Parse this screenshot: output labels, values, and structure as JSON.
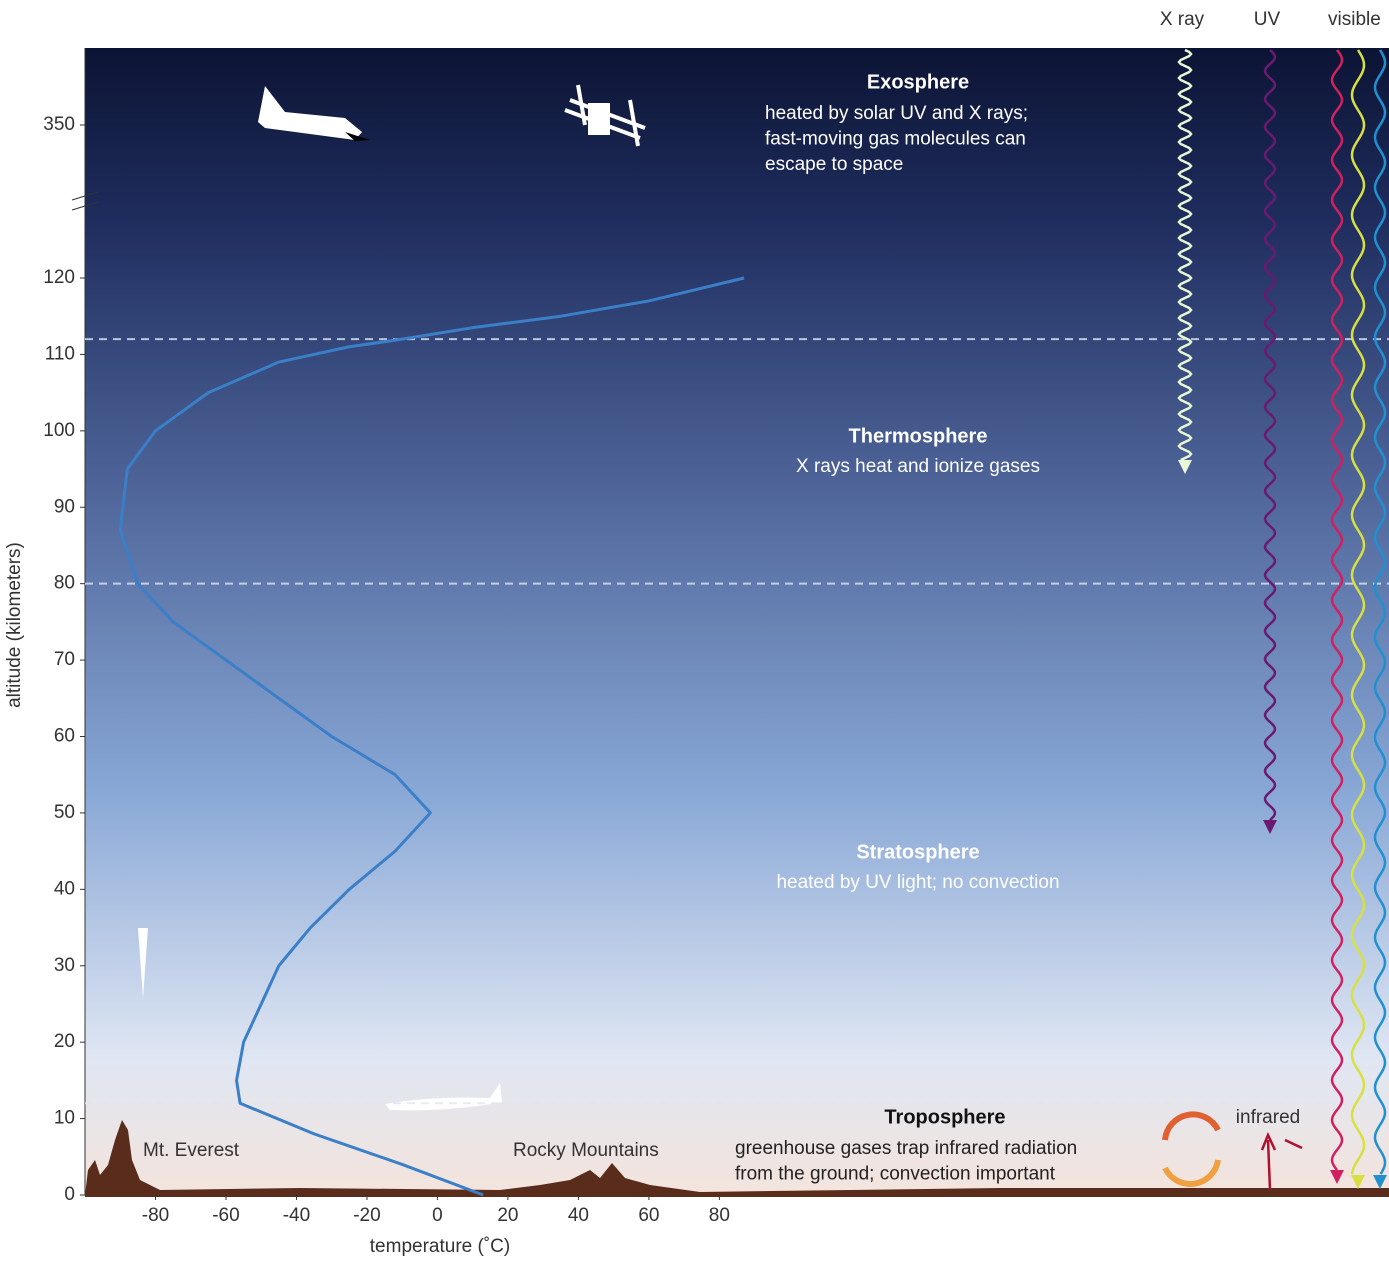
{
  "chart_data": {
    "type": "line",
    "x_label": "temperature (˚C)",
    "y_label": "altitude (kilometers)",
    "x": [
      13,
      -10,
      -35,
      -56,
      -57,
      -55,
      -50,
      -45,
      -36,
      -25,
      -12,
      -2,
      -12,
      -30,
      -45,
      -60,
      -75,
      -85,
      -90,
      -88,
      -80,
      -65,
      -45,
      -25,
      -10,
      10,
      35,
      60,
      87
    ],
    "values": [
      0,
      4,
      8,
      12,
      15,
      20,
      25,
      30,
      35,
      40,
      45,
      50,
      55,
      60,
      65,
      70,
      75,
      80,
      87,
      95,
      100,
      105,
      109,
      111,
      112,
      113.5,
      115,
      117,
      120
    ],
    "color": "#3a7fc8",
    "xlim": [
      -100,
      270
    ],
    "ylim": [
      0,
      120
    ],
    "xticks": [
      -80,
      -60,
      -40,
      -20,
      0,
      20,
      40,
      60,
      80
    ],
    "yticks": [
      0,
      10,
      20,
      30,
      40,
      50,
      60,
      70,
      80,
      90,
      100,
      110,
      120
    ],
    "upper_yticks": [
      350
    ],
    "boundaries": [
      12,
      80,
      112
    ],
    "layers": [
      {
        "name": "Exosphere",
        "description": [
          "heated by solar UV and X rays;",
          "fast-moving gas molecules can",
          "escape to space"
        ]
      },
      {
        "name": "Thermosphere",
        "description": [
          "X rays heat and ionize gases"
        ]
      },
      {
        "name": "Stratosphere",
        "description": [
          "heated by UV light; no convection"
        ]
      },
      {
        "name": "Troposphere",
        "description": [
          "greenhouse gases trap infrared radiation",
          "from the ground; convection important"
        ]
      }
    ],
    "landmarks": [
      "Mt. Everest",
      "Rocky Mountains"
    ],
    "radiation": [
      "X ray",
      "UV",
      "visible",
      "infrared"
    ]
  }
}
